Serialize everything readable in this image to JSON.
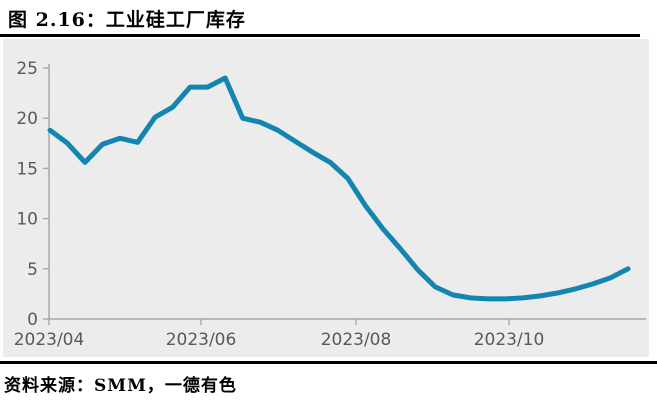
{
  "header": {
    "title": "图 2.16：工业硅工厂库存"
  },
  "footer": {
    "source_text": "资料来源：SMM，一德有色"
  },
  "chart_data": {
    "type": "line",
    "title": "工业硅工厂库存",
    "xlabel": "",
    "ylabel": "",
    "ylim": [
      0,
      25
    ],
    "y_ticks": [
      0,
      5,
      10,
      15,
      20,
      25
    ],
    "x_tick_labels": [
      "2023/04",
      "2023/06",
      "2023/08",
      "2023/10"
    ],
    "grid": false,
    "legend": "none",
    "frequency": "weekly",
    "line_color": "#1285b0",
    "axis_color": "#a6a6a6",
    "tick_label_color": "#595959",
    "plot_background": "#ececec",
    "values": [
      18.8,
      17.5,
      15.6,
      17.4,
      18.0,
      17.6,
      20.1,
      21.1,
      23.1,
      23.1,
      24.0,
      20.0,
      19.6,
      18.8,
      17.7,
      16.6,
      15.6,
      14.0,
      11.3,
      9.0,
      7.0,
      4.9,
      3.2,
      2.4,
      2.1,
      2.0,
      2.0,
      2.1,
      2.3,
      2.6,
      3.0,
      3.5,
      4.1,
      5.0
    ]
  }
}
